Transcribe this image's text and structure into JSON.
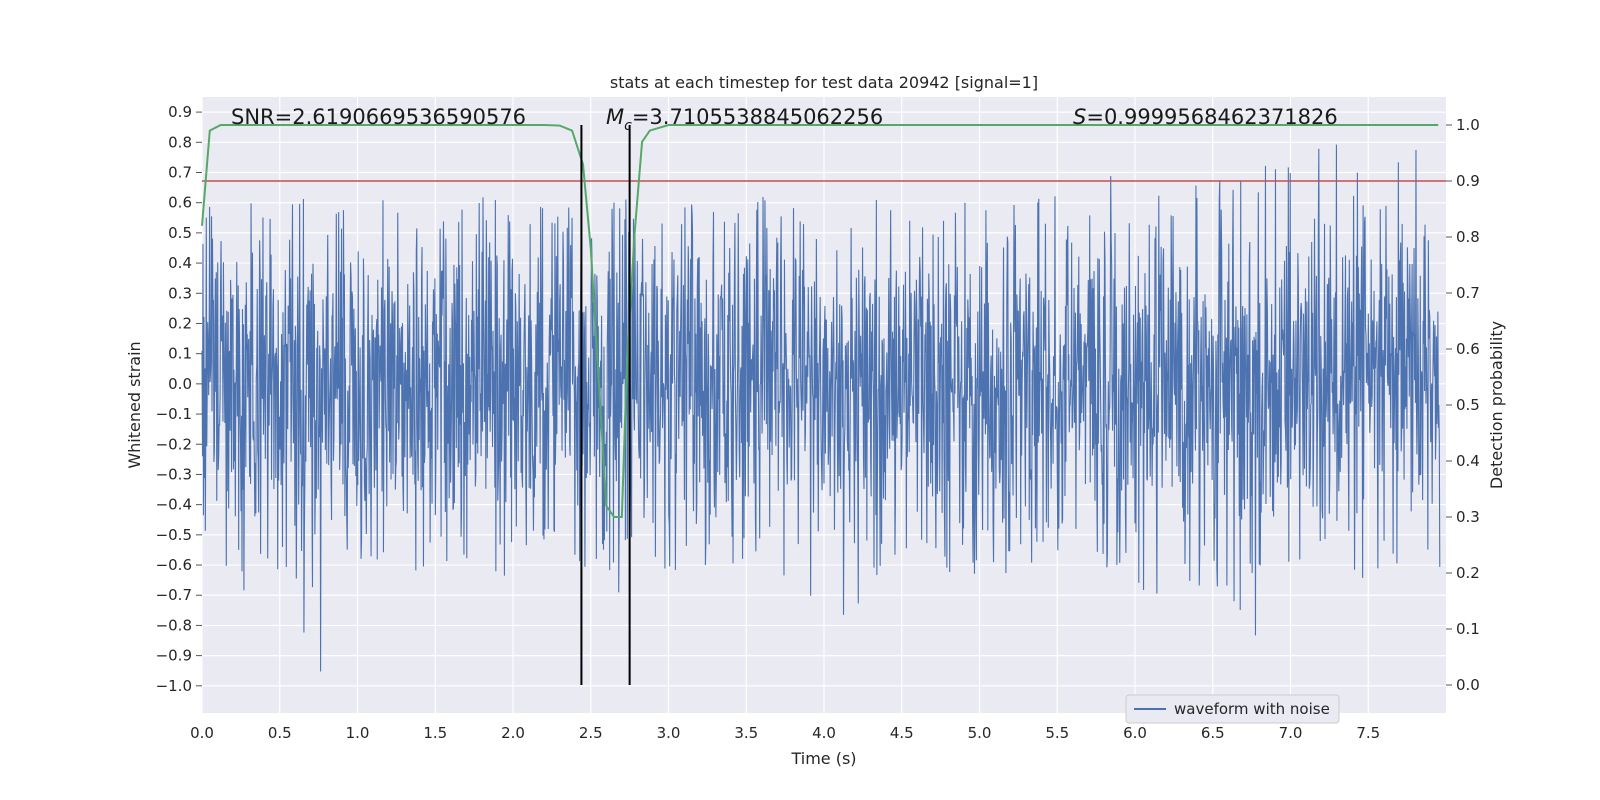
{
  "chart_data": {
    "type": "line",
    "title": "stats at each timestep for test data 20942 [signal=1]",
    "xlabel": "Time (s)",
    "ylabel_left": "Whitened strain",
    "ylabel_right": "Detection probability",
    "xlim": [
      0.0,
      8.0
    ],
    "ylim_left": [
      -1.09,
      0.95
    ],
    "ylim_right": [
      -0.05,
      1.05
    ],
    "x_ticks": [
      "0.0",
      "0.5",
      "1.0",
      "1.5",
      "2.0",
      "2.5",
      "3.0",
      "3.5",
      "4.0",
      "4.5",
      "5.0",
      "5.5",
      "6.0",
      "6.5",
      "7.0",
      "7.5"
    ],
    "y_left_ticks": [
      "0.9",
      "0.8",
      "0.7",
      "0.6",
      "0.5",
      "0.4",
      "0.3",
      "0.2",
      "0.1",
      "0.0",
      "−0.1",
      "−0.2",
      "−0.3",
      "−0.4",
      "−0.5",
      "−0.6",
      "−0.7",
      "−0.8",
      "−0.9",
      "−1.0"
    ],
    "y_right_ticks": [
      "1.0",
      "0.9",
      "0.8",
      "0.7",
      "0.6",
      "0.5",
      "0.4",
      "0.3",
      "0.2",
      "0.1",
      "0.0"
    ],
    "grid": true,
    "legend_position": "lower-right",
    "annotations": {
      "snr": "SNR=2.6190669536590576",
      "mc_symbol": "M",
      "mc_sub": "c",
      "mc_value": "=3.7105538845062256",
      "s_symbol": "S",
      "s_value": "=0.9999568462371826"
    },
    "series": [
      {
        "name": "waveform with noise",
        "color": "#4c72b0",
        "description": "dense noisy whitened strain, peak envelope approx",
        "envelope_upper": [
          [
            0.05,
            0.62
          ],
          [
            0.2,
            0.68
          ],
          [
            0.4,
            0.6
          ],
          [
            0.6,
            0.62
          ],
          [
            0.9,
            0.6
          ],
          [
            1.2,
            0.62
          ],
          [
            1.5,
            0.58
          ],
          [
            1.8,
            0.62
          ],
          [
            2.0,
            0.6
          ],
          [
            2.3,
            0.62
          ],
          [
            2.7,
            0.64
          ],
          [
            3.0,
            0.6
          ],
          [
            3.5,
            0.62
          ],
          [
            3.8,
            0.7
          ],
          [
            4.0,
            0.6
          ],
          [
            4.5,
            0.63
          ],
          [
            5.0,
            0.62
          ],
          [
            5.3,
            0.6
          ],
          [
            5.8,
            0.75
          ],
          [
            6.0,
            0.66
          ],
          [
            6.5,
            0.7
          ],
          [
            7.0,
            0.76
          ],
          [
            7.2,
            0.84
          ],
          [
            7.5,
            0.72
          ],
          [
            7.9,
            0.86
          ]
        ],
        "envelope_lower": [
          [
            0.05,
            -0.6
          ],
          [
            0.2,
            -0.75
          ],
          [
            0.5,
            -0.65
          ],
          [
            0.7,
            -0.9
          ],
          [
            0.75,
            -1.0
          ],
          [
            1.0,
            -0.62
          ],
          [
            1.3,
            -0.6
          ],
          [
            1.6,
            -0.8
          ],
          [
            1.8,
            -0.9
          ],
          [
            2.0,
            -0.6
          ],
          [
            2.3,
            -0.55
          ],
          [
            2.7,
            -0.7
          ],
          [
            3.0,
            -0.65
          ],
          [
            3.5,
            -0.6
          ],
          [
            4.05,
            -0.81
          ],
          [
            4.5,
            -0.6
          ],
          [
            5.0,
            -0.65
          ],
          [
            5.5,
            -0.6
          ],
          [
            6.0,
            -0.7
          ],
          [
            6.2,
            -0.78
          ],
          [
            6.5,
            -0.65
          ],
          [
            6.8,
            -0.86
          ],
          [
            7.0,
            -0.62
          ],
          [
            7.5,
            -0.65
          ],
          [
            7.9,
            -0.69
          ]
        ]
      },
      {
        "name": "",
        "color": "#55a868",
        "axis": "right",
        "x": [
          0.0,
          0.05,
          0.12,
          0.3,
          0.6,
          1.0,
          1.5,
          2.0,
          2.2,
          2.3,
          2.38,
          2.45,
          2.5,
          2.55,
          2.6,
          2.65,
          2.7,
          2.73,
          2.78,
          2.83,
          2.88,
          3.0,
          3.5,
          4.0,
          5.0,
          6.0,
          7.0,
          7.95
        ],
        "y": [
          0.82,
          0.99,
          1.0,
          1.0,
          1.0,
          1.0,
          1.0,
          1.0,
          1.0,
          0.999,
          0.99,
          0.93,
          0.78,
          0.55,
          0.32,
          0.3,
          0.3,
          0.55,
          0.8,
          0.97,
          0.99,
          1.0,
          1.0,
          1.0,
          1.0,
          1.0,
          1.0,
          1.0
        ]
      }
    ],
    "threshold_right": 0.9,
    "threshold_color": "#c44e52",
    "vlines": [
      2.44,
      2.75
    ]
  }
}
